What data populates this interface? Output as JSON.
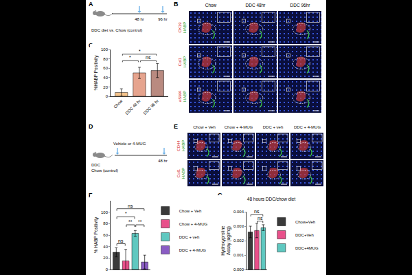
{
  "figure": {
    "A": {
      "letter": "A",
      "caption": "DDC diet vs. Chow (control)",
      "timepoints": [
        "48 hr",
        "96 hr"
      ]
    },
    "B": {
      "letter": "B",
      "columns": [
        "Chow",
        "DDC 48hr",
        "DDC 96hr"
      ],
      "rows": [
        [
          "CK19",
          "HABP"
        ],
        [
          "Col1",
          "HABP"
        ],
        [
          "aSMA",
          "HABP"
        ]
      ]
    },
    "D": {
      "letter": "D",
      "groups": [
        "DDC",
        "Chow (control)"
      ],
      "treatment": "Vehicle or 4-MUG",
      "timepoint": "48 hr"
    },
    "E": {
      "letter": "E",
      "columns": [
        "Chow + Veh",
        "Chow + 4-MUG",
        "DDC + veh",
        "DDC + 4-MUG"
      ],
      "rows": [
        [
          "CD44",
          "HABP"
        ],
        [
          "Col1",
          "HABP"
        ]
      ]
    }
  },
  "chart_data": [
    {
      "panel": "C",
      "type": "bar",
      "categories": [
        "Chow",
        "DDC 48 hr",
        "DDC 96 hr"
      ],
      "values": [
        8,
        50,
        55
      ],
      "errors": [
        8,
        12,
        15
      ],
      "colors": [
        "#f5c48c",
        "#e6a48e",
        "#b98a80"
      ],
      "y_label": "%HABP Positivity",
      "ylim": [
        0,
        100
      ],
      "yticks": [
        0,
        20,
        40,
        60,
        80,
        100
      ],
      "comparisons": [
        {
          "between": [
            "Chow",
            "DDC 48 hr"
          ],
          "text": "*",
          "y": 76
        },
        {
          "between": [
            "DDC 48 hr",
            "DDC 96 hr"
          ],
          "text": "ns",
          "y": 76
        },
        {
          "between": [
            "Chow",
            "DDC 96 hr"
          ],
          "text": "*",
          "y": 90
        }
      ]
    },
    {
      "panel": "F",
      "type": "bar",
      "categories": [
        "Chow + Veh",
        "Chow + 4-MUG",
        "DDC + veh",
        "DDC + 4-MUG"
      ],
      "values": [
        30,
        15,
        63,
        13
      ],
      "errors": [
        8,
        20,
        5,
        12
      ],
      "colors": [
        "#3a3a3a",
        "#e8508a",
        "#5fc8c0",
        "#8a5cc4"
      ],
      "y_label": "% HABP Positivity",
      "ylim": [
        0,
        120
      ],
      "yticks": [
        0,
        20,
        40,
        60,
        80,
        100
      ],
      "legend": "right",
      "tick_labels": "y",
      "comparisons": [
        {
          "between": [
            "Chow + Veh",
            "Chow + 4-MUG"
          ],
          "text": "ns",
          "y": 45
        },
        {
          "between": [
            "Chow + 4-MUG",
            "DDC + veh"
          ],
          "text": "**",
          "y": 78
        },
        {
          "between": [
            "DDC + veh",
            "DDC + 4-MUG"
          ],
          "text": "**",
          "y": 78
        },
        {
          "between": [
            "Chow + Veh",
            "DDC + veh"
          ],
          "text": "*",
          "y": 92
        },
        {
          "between": [
            "Chow + Veh",
            "DDC + 4-MUG"
          ],
          "text": "ns",
          "y": 106
        }
      ]
    },
    {
      "panel": "G",
      "type": "bar",
      "title": "48 hours DDC/chow diet",
      "categories": [
        "Chow+Veh",
        "DDC+Veh",
        "DDC+4MUG"
      ],
      "values": [
        0.0026,
        0.0027,
        0.0029
      ],
      "errors": [
        0.0004,
        0.0005,
        0.0002
      ],
      "colors": [
        "#3a3a3a",
        "#e8508a",
        "#5fc8c0"
      ],
      "y_label": "Hydroxyproline Assay (ug/mg)",
      "ylim": [
        0,
        0.004
      ],
      "yticks": [
        {
          "value": 0,
          "label": "0.000"
        },
        0.001,
        0.002,
        0.003,
        0.004
      ],
      "legend": "right",
      "tick_labels": "y",
      "comparisons": [
        {
          "between": [
            "DDC+Veh",
            "DDC+4MUG"
          ],
          "text": "ns",
          "y": 0.00335
        },
        {
          "between": [
            "Chow+Veh",
            "DDC+4MUG"
          ],
          "text": "ns",
          "y": 0.0038
        }
      ]
    }
  ]
}
